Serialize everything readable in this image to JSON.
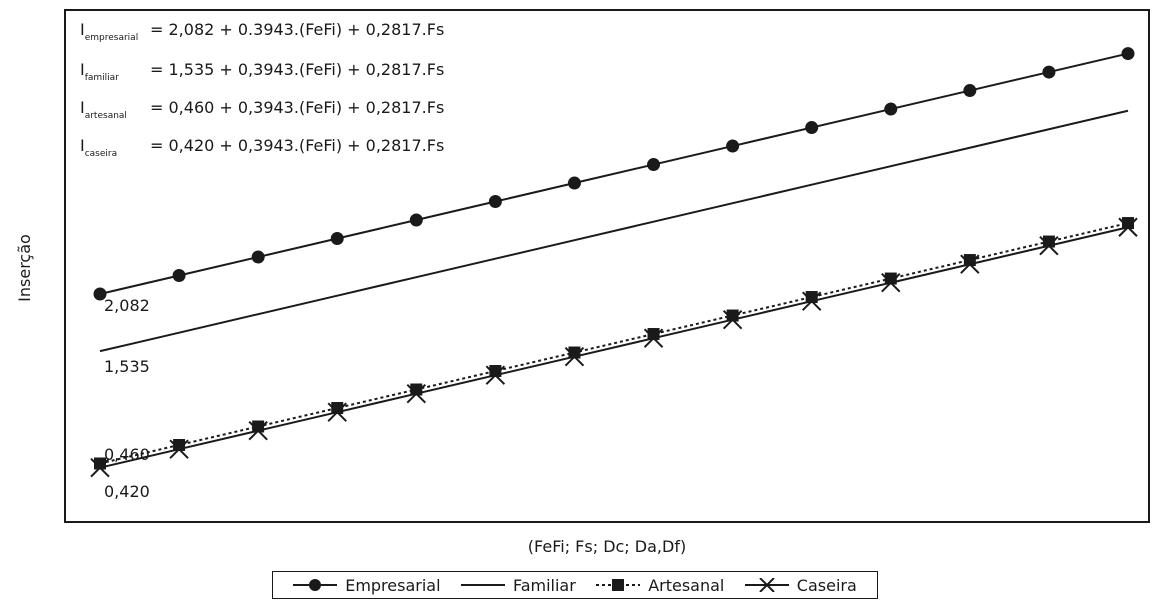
{
  "chart_data": {
    "type": "line",
    "xlabel": "(FeFi; Fs; Dc; Da,Df)",
    "ylabel": "Inserção",
    "equations": [
      {
        "prefix": "I",
        "sub": "empresarial",
        "rhs": "= 2,082 + 0.3943.(FeFi) + 0,2817.Fs"
      },
      {
        "prefix": "I",
        "sub": "familiar",
        "rhs": "= 1,535 + 0,3943.(FeFi) + 0,2817.Fs"
      },
      {
        "prefix": "I",
        "sub": "artesanal",
        "rhs": "= 0,460 + 0,3943.(FeFi) + 0,2817.Fs"
      },
      {
        "prefix": "I",
        "sub": "caseira",
        "rhs": "= 0,420 + 0,3943.(FeFi) + 0,2817.Fs"
      }
    ],
    "intercept_labels": [
      "2,082",
      "1,535",
      "0,460",
      "0,420"
    ],
    "series": [
      {
        "name": "Empresarial",
        "marker": "circle",
        "style": "solid",
        "intercept": 2.082,
        "markers": 14
      },
      {
        "name": "Familiar",
        "marker": "none",
        "style": "solid",
        "intercept": 1.535,
        "markers": 0
      },
      {
        "name": "Artesanal",
        "marker": "square",
        "style": "dotted",
        "intercept": 0.46,
        "markers": 14
      },
      {
        "name": "Caseira",
        "marker": "x",
        "style": "solid",
        "intercept": 0.42,
        "markers": 14
      }
    ],
    "slope_per_step": 0.177,
    "steps": 13,
    "ylim": [
      -0.1,
      4.8
    ],
    "grid": false,
    "legend_position": "bottom"
  }
}
